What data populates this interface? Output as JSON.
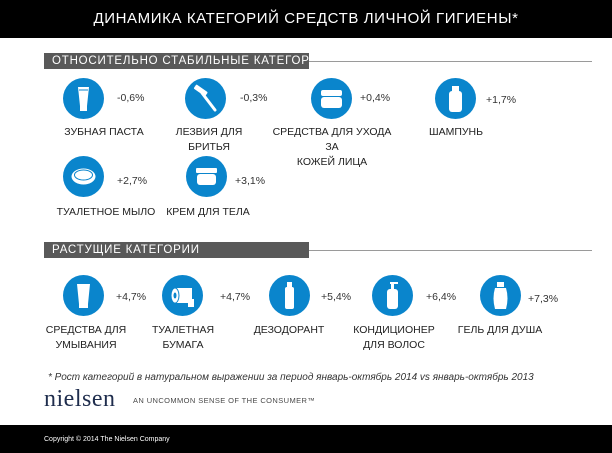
{
  "title": "ДИНАМИКА КАТЕГОРИЙ СРЕДСТВ ЛИЧНОЙ ГИГИЕНЫ*",
  "colors": {
    "icon_circle": "#0a85cc",
    "header_bar": "#595959",
    "title_bar": "#000000"
  },
  "sections": {
    "stable": {
      "header": "ОТНОСИТЕЛЬНО СТАБИЛЬНЫЕ КАТЕГОРИИ",
      "items": [
        {
          "icon": "toothpaste-icon",
          "pct": "-0,6%",
          "label": "ЗУБНАЯ ПАСТА"
        },
        {
          "icon": "razor-icon",
          "pct": "-0,3%",
          "label": "ЛЕЗВИЯ ДЛЯ БРИТЬЯ"
        },
        {
          "icon": "face-cream-jar-icon",
          "pct": "+0,4%",
          "label": "СРЕДСТВА ДЛЯ УХОДА ЗА\nКОЖЕЙ ЛИЦА"
        },
        {
          "icon": "shampoo-bottle-icon",
          "pct": "+1,7%",
          "label": "ШАМПУНЬ"
        },
        {
          "icon": "soap-icon",
          "pct": "+2,7%",
          "label": "ТУАЛЕТНОЕ МЫЛО"
        },
        {
          "icon": "body-cream-icon",
          "pct": "+3,1%",
          "label": "КРЕМ ДЛЯ ТЕЛА"
        }
      ]
    },
    "growing": {
      "header": "РАСТУЩИЕ  КАТЕГОРИИ",
      "items": [
        {
          "icon": "face-wash-tube-icon",
          "pct": "+4,7%",
          "label": "СРЕДСТВА ДЛЯ\nУМЫВАНИЯ"
        },
        {
          "icon": "toilet-paper-icon",
          "pct": "+4,7%",
          "label": "ТУАЛЕТНАЯ\nБУМАГА"
        },
        {
          "icon": "deodorant-icon",
          "pct": "+5,4%",
          "label": "ДЕЗОДОРАНТ"
        },
        {
          "icon": "conditioner-pump-icon",
          "pct": "+6,4%",
          "label": "КОНДИЦИОНЕР\nДЛЯ ВОЛОС"
        },
        {
          "icon": "shower-gel-icon",
          "pct": "+7,3%",
          "label": "ГЕЛЬ ДЛЯ ДУША"
        }
      ]
    }
  },
  "footnote": "* Рост категорий в натуральном выражении за период  январь-октябрь 2014 vs январь-октябрь 2013",
  "logo": "nielsen",
  "tagline": "AN UNCOMMON SENSE OF THE CONSUMER™",
  "copyright": "Copyright  © 2014 The Nielsen Company"
}
